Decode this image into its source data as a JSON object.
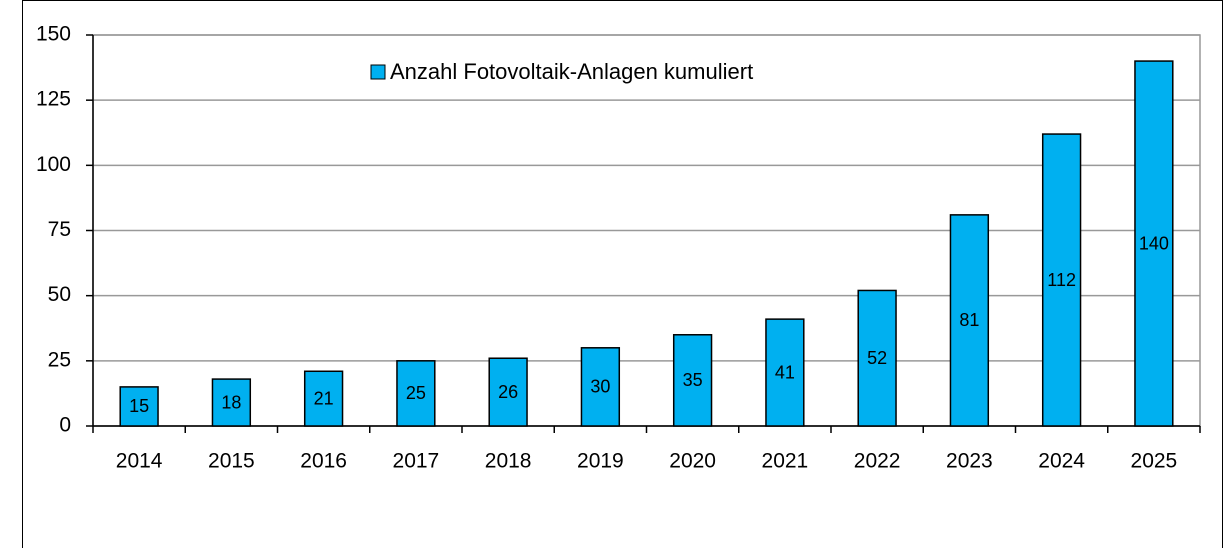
{
  "chart_data": {
    "type": "bar",
    "legend": "Anzahl Fotovoltaik-Anlagen kumuliert",
    "categories": [
      "2014",
      "2015",
      "2016",
      "2017",
      "2018",
      "2019",
      "2020",
      "2021",
      "2022",
      "2023",
      "2024",
      "2025"
    ],
    "values": [
      15,
      18,
      21,
      25,
      26,
      30,
      35,
      41,
      52,
      81,
      112,
      140
    ],
    "color": "#00b0f0",
    "ylim": [
      0,
      150
    ],
    "yticks": [
      0,
      25,
      50,
      75,
      100,
      125,
      150
    ],
    "grid": true,
    "legend_position": "top"
  }
}
